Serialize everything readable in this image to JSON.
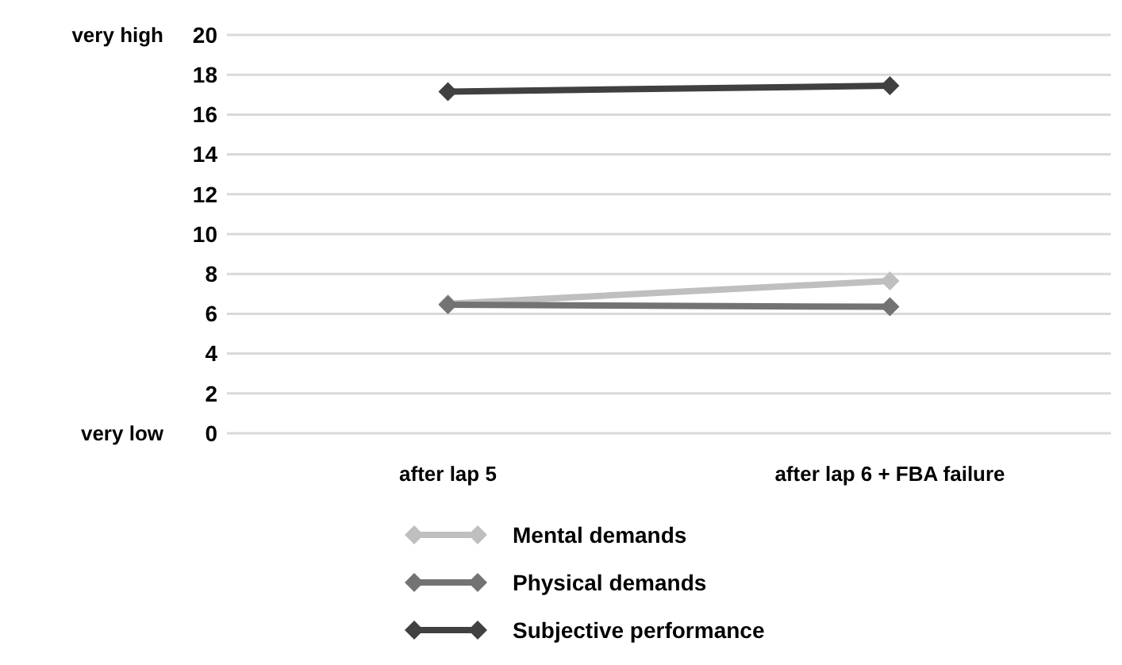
{
  "chart_data": {
    "type": "line",
    "categories": [
      "after lap 5",
      "after lap 6 + FBA failure"
    ],
    "series": [
      {
        "name": "Mental demands",
        "color": "#bfbfbf",
        "values": [
          6.5,
          7.65
        ]
      },
      {
        "name": "Physical demands",
        "color": "#737373",
        "values": [
          6.45,
          6.35
        ]
      },
      {
        "name": "Subjective performance",
        "color": "#404040",
        "values": [
          17.15,
          17.45
        ]
      }
    ],
    "ylim": [
      0,
      20
    ],
    "yticks": [
      0,
      2,
      4,
      6,
      8,
      10,
      12,
      14,
      16,
      18,
      20
    ],
    "grid": "y",
    "legend": "bottom",
    "marker": "diamond",
    "line_style": "solid",
    "annotations": [
      "very high",
      "very low"
    ]
  }
}
